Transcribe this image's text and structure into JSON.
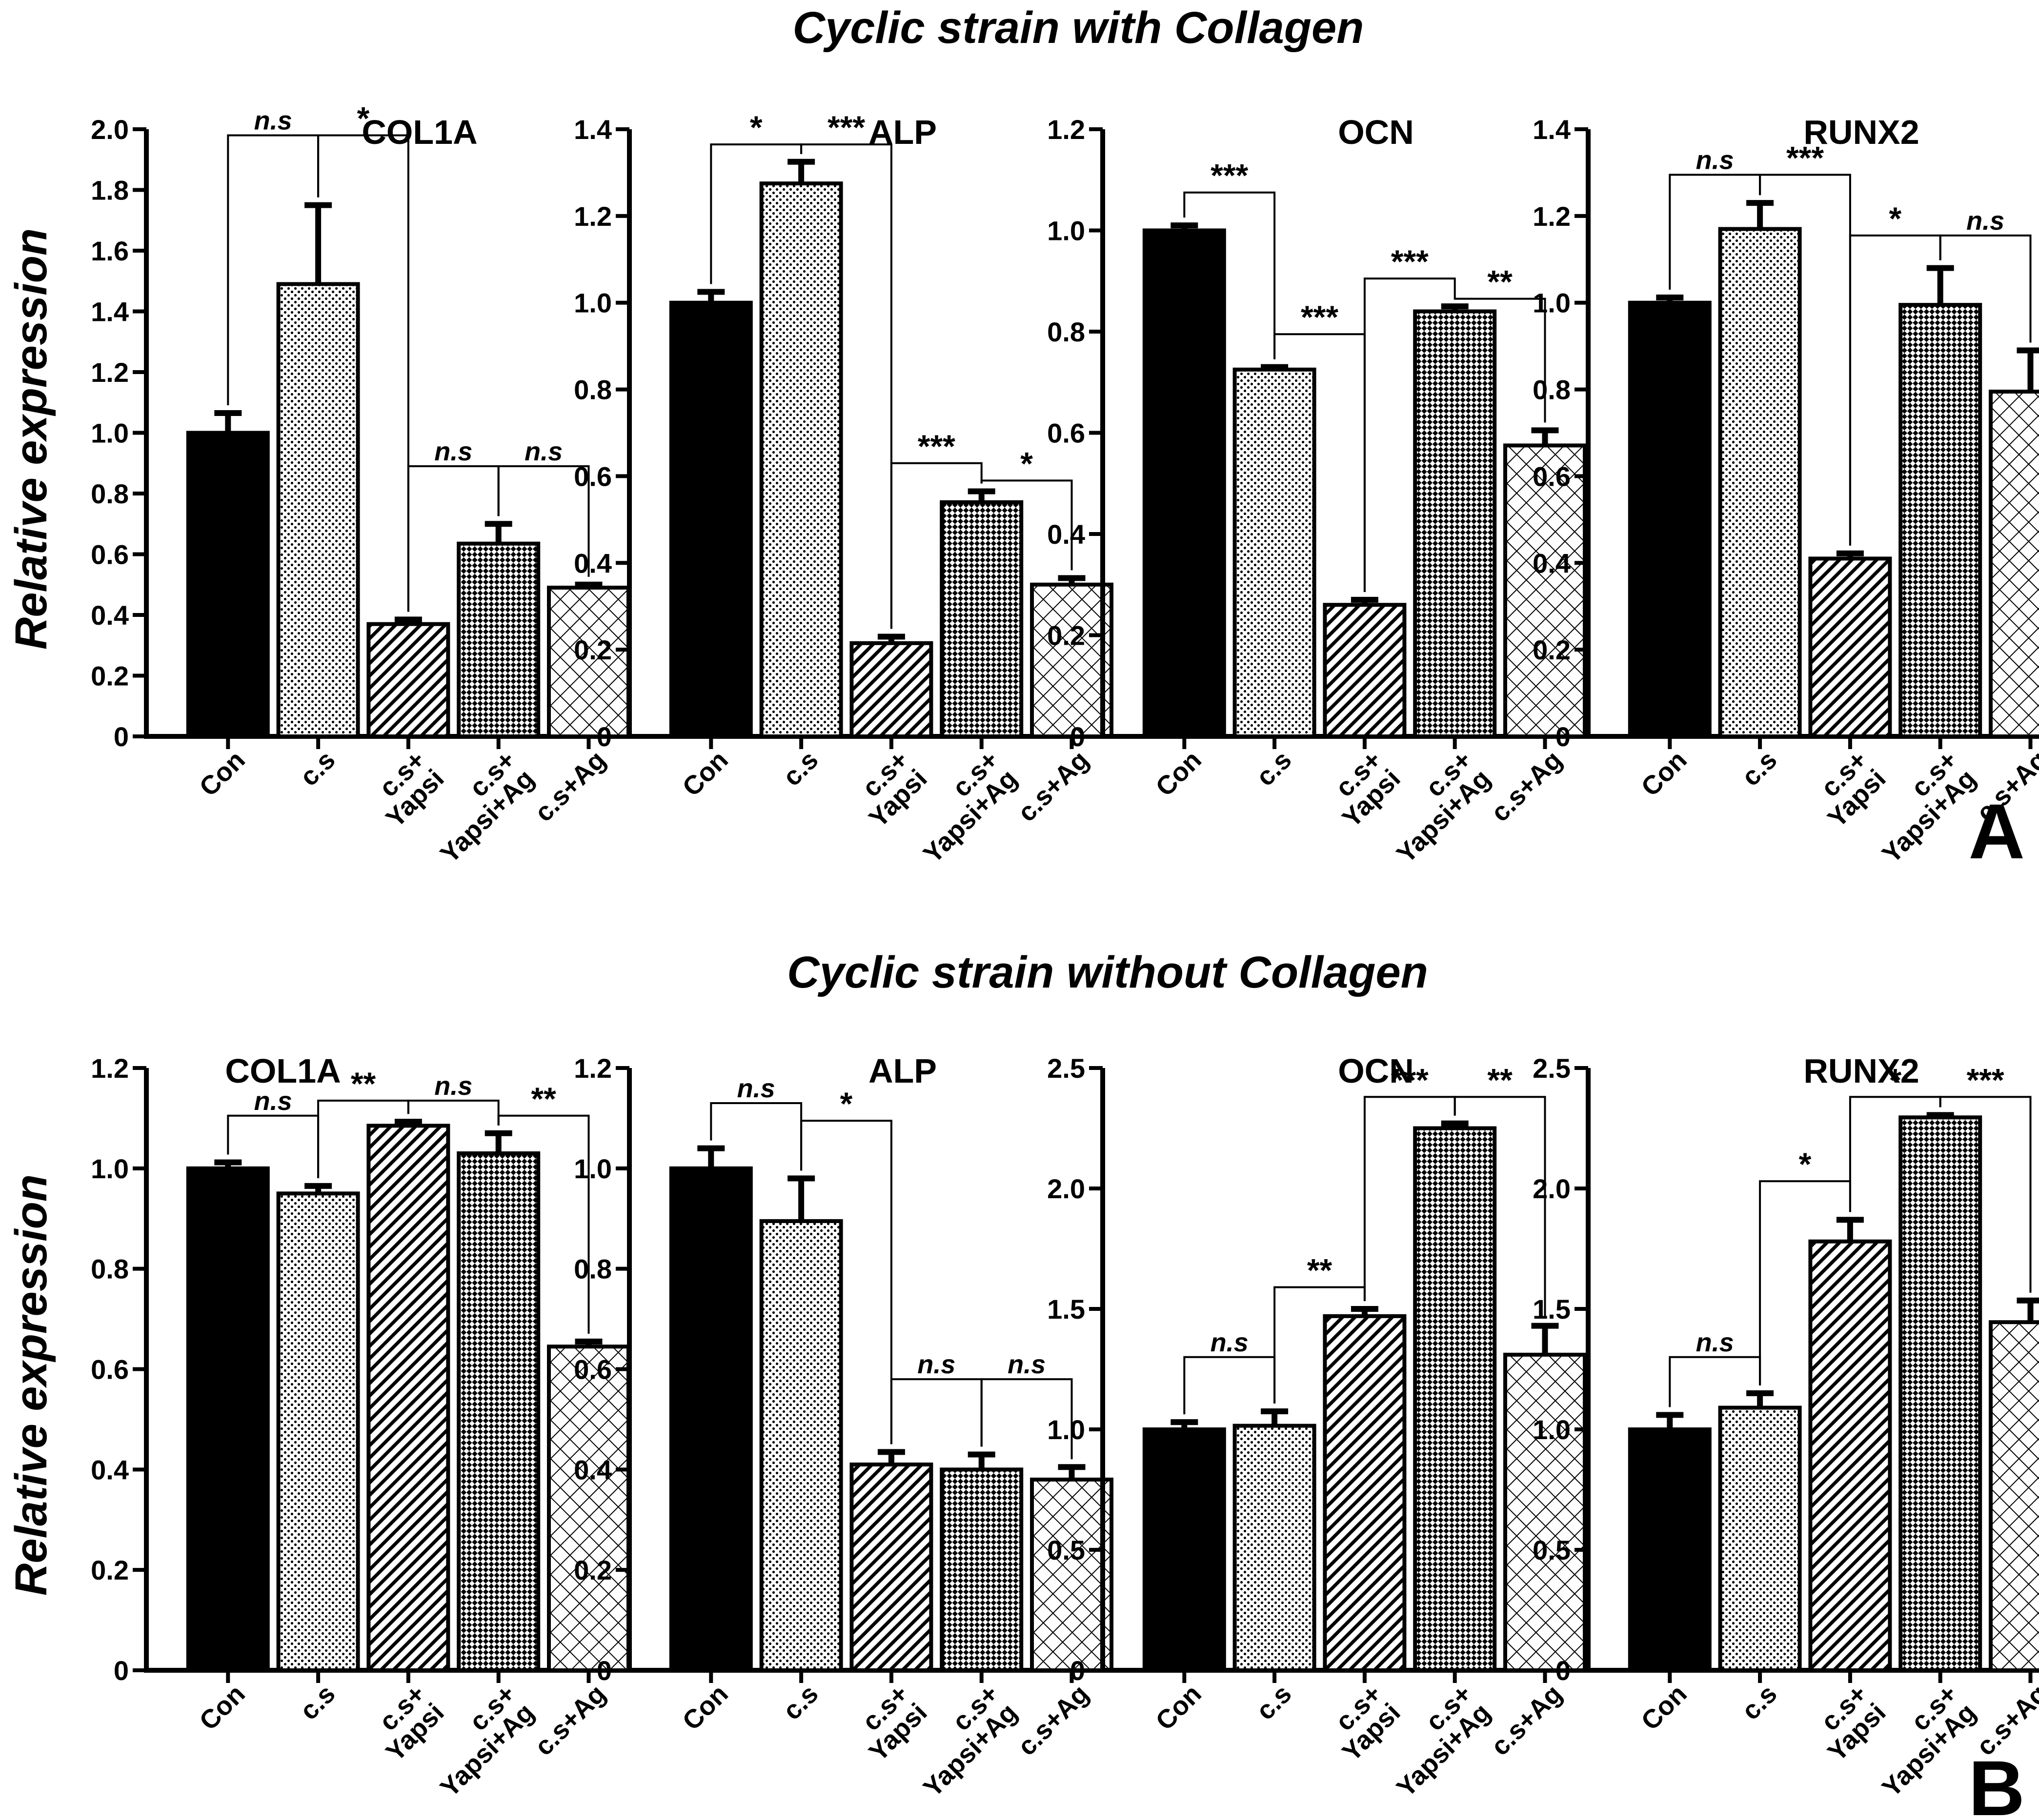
{
  "figure": {
    "panel_titles": [
      "Cyclic strain with Collagen",
      "Cyclic strain without Collagen"
    ],
    "panel_letters": [
      "A",
      "B"
    ],
    "ylabel": "Relative expression",
    "categories": [
      "Con",
      "c.s",
      "c.s+\nYapsi",
      "c.s+\nYapsi+Ag",
      "c.s+Ag"
    ]
  },
  "chart_data": [
    {
      "type": "bar",
      "panel": "A",
      "title": "COL1A",
      "ylabel": "Relative expression",
      "ylim": [
        0,
        2.0
      ],
      "yticks": [
        0,
        0.2,
        0.4,
        0.6,
        0.8,
        1.0,
        1.2,
        1.4,
        1.6,
        1.8,
        2.0
      ],
      "tick_labels": [
        "0",
        "0.2",
        "0.4",
        "0.6",
        "0.8",
        "1.0",
        "1.2",
        "1.4",
        "1.6",
        "1.8",
        "2.0"
      ],
      "values": [
        1.0,
        1.49,
        0.37,
        0.635,
        0.49
      ],
      "errors": [
        0.065,
        0.26,
        0.015,
        0.065,
        0.01
      ],
      "significance": [
        {
          "from": 0,
          "to": 1,
          "label": "n.s",
          "y": 1.98
        },
        {
          "from": 1,
          "to": 2,
          "label": "*",
          "y": 1.98
        },
        {
          "from": 2,
          "to": 3,
          "label": "n.s",
          "y": 0.89
        },
        {
          "from": 3,
          "to": 4,
          "label": "n.s",
          "y": 0.89
        }
      ]
    },
    {
      "type": "bar",
      "panel": "A",
      "title": "ALP",
      "ylabel": "",
      "ylim": [
        0,
        1.4
      ],
      "yticks": [
        0,
        0.2,
        0.4,
        0.6,
        0.8,
        1.0,
        1.2,
        1.4
      ],
      "tick_labels": [
        "0",
        "0.2",
        "0.4",
        "0.6",
        "0.8",
        "1.0",
        "1.2",
        "1.4"
      ],
      "values": [
        1.0,
        1.275,
        0.215,
        0.54,
        0.35
      ],
      "errors": [
        0.025,
        0.05,
        0.015,
        0.025,
        0.015
      ],
      "significance": [
        {
          "from": 0,
          "to": 1,
          "label": "*",
          "y": 1.365
        },
        {
          "from": 1,
          "to": 2,
          "label": "***",
          "y": 1.365
        },
        {
          "from": 2,
          "to": 3,
          "label": "***",
          "y": 0.63
        },
        {
          "from": 3,
          "to": 4,
          "label": "*",
          "y": 0.59
        }
      ]
    },
    {
      "type": "bar",
      "panel": "A",
      "title": "OCN",
      "ylabel": "",
      "ylim": [
        0,
        1.2
      ],
      "yticks": [
        0,
        0.2,
        0.4,
        0.6,
        0.8,
        1.0,
        1.2
      ],
      "tick_labels": [
        "0",
        "0.2",
        "0.4",
        "0.6",
        "0.8",
        "1.0",
        "1.2"
      ],
      "values": [
        1.0,
        0.725,
        0.26,
        0.84,
        0.575
      ],
      "errors": [
        0.01,
        0.005,
        0.01,
        0.01,
        0.03
      ],
      "significance": [
        {
          "from": 0,
          "to": 1,
          "label": "***",
          "y": 1.075
        },
        {
          "from": 1,
          "to": 2,
          "label": "***",
          "y": 0.795
        },
        {
          "from": 2,
          "to": 3,
          "label": "***",
          "y": 0.905
        },
        {
          "from": 3,
          "to": 4,
          "label": "**",
          "y": 0.865
        }
      ]
    },
    {
      "type": "bar",
      "panel": "A",
      "title": "RUNX2",
      "ylabel": "",
      "ylim": [
        0,
        1.4
      ],
      "yticks": [
        0,
        0.2,
        0.4,
        0.6,
        0.8,
        1.0,
        1.2,
        1.4
      ],
      "tick_labels": [
        "0",
        "0.2",
        "0.4",
        "0.6",
        "0.8",
        "1.0",
        "1.2",
        "1.4"
      ],
      "values": [
        1.0,
        1.17,
        0.41,
        0.995,
        0.795
      ],
      "errors": [
        0.012,
        0.06,
        0.012,
        0.085,
        0.095
      ],
      "significance": [
        {
          "from": 0,
          "to": 1,
          "label": "n.s",
          "y": 1.295
        },
        {
          "from": 1,
          "to": 2,
          "label": "***",
          "y": 1.295
        },
        {
          "from": 2,
          "to": 3,
          "label": "*",
          "y": 1.155
        },
        {
          "from": 3,
          "to": 4,
          "label": "n.s",
          "y": 1.155
        }
      ]
    },
    {
      "type": "bar",
      "panel": "B",
      "title": "COL1A",
      "ylabel": "Relative expression",
      "ylim": [
        0,
        1.2
      ],
      "yticks": [
        0,
        0.2,
        0.4,
        0.6,
        0.8,
        1.0,
        1.2
      ],
      "tick_labels": [
        "0",
        "0.2",
        "0.4",
        "0.6",
        "0.8",
        "1.0",
        "1.2"
      ],
      "values": [
        1.0,
        0.95,
        1.085,
        1.03,
        0.645
      ],
      "errors": [
        0.012,
        0.015,
        0.008,
        0.04,
        0.01
      ],
      "significance": [
        {
          "from": 0,
          "to": 1,
          "label": "n.s",
          "y": 1.105
        },
        {
          "from": 1,
          "to": 2,
          "label": "**",
          "y": 1.135
        },
        {
          "from": 2,
          "to": 3,
          "label": "n.s",
          "y": 1.135
        },
        {
          "from": 3,
          "to": 4,
          "label": "**",
          "y": 1.105
        }
      ]
    },
    {
      "type": "bar",
      "panel": "B",
      "title": "ALP",
      "ylabel": "",
      "ylim": [
        0,
        1.2
      ],
      "yticks": [
        0,
        0.2,
        0.4,
        0.6,
        0.8,
        1.0,
        1.2
      ],
      "tick_labels": [
        "0",
        "0.2",
        "0.4",
        "0.6",
        "0.8",
        "1.0",
        "1.2"
      ],
      "values": [
        1.0,
        0.895,
        0.41,
        0.4,
        0.38
      ],
      "errors": [
        0.04,
        0.085,
        0.025,
        0.03,
        0.025
      ],
      "significance": [
        {
          "from": 0,
          "to": 1,
          "label": "n.s",
          "y": 1.13
        },
        {
          "from": 1,
          "to": 2,
          "label": "*",
          "y": 1.095
        },
        {
          "from": 2,
          "to": 3,
          "label": "n.s",
          "y": 0.58
        },
        {
          "from": 3,
          "to": 4,
          "label": "n.s",
          "y": 0.58
        }
      ]
    },
    {
      "type": "bar",
      "panel": "B",
      "title": "OCN",
      "ylabel": "",
      "ylim": [
        0,
        2.5
      ],
      "yticks": [
        0,
        0.5,
        1.0,
        1.5,
        2.0,
        2.5
      ],
      "tick_labels": [
        "0",
        "0.5",
        "1.0",
        "1.5",
        "2.0",
        "2.5"
      ],
      "values": [
        1.0,
        1.015,
        1.47,
        2.25,
        1.31
      ],
      "errors": [
        0.03,
        0.06,
        0.03,
        0.02,
        0.12
      ],
      "significance": [
        {
          "from": 0,
          "to": 1,
          "label": "n.s",
          "y": 1.3
        },
        {
          "from": 1,
          "to": 2,
          "label": "**",
          "y": 1.59
        },
        {
          "from": 2,
          "to": 3,
          "label": "***",
          "y": 2.38
        },
        {
          "from": 3,
          "to": 4,
          "label": "**",
          "y": 2.38
        }
      ]
    },
    {
      "type": "bar",
      "panel": "B",
      "title": "RUNX2",
      "ylabel": "",
      "ylim": [
        0,
        2.5
      ],
      "yticks": [
        0,
        0.5,
        1.0,
        1.5,
        2.0,
        2.5
      ],
      "tick_labels": [
        "0",
        "0.5",
        "1.0",
        "1.5",
        "2.0",
        "2.5"
      ],
      "values": [
        1.0,
        1.09,
        1.78,
        2.295,
        1.445
      ],
      "errors": [
        0.06,
        0.06,
        0.09,
        0.01,
        0.09
      ],
      "significance": [
        {
          "from": 0,
          "to": 1,
          "label": "n.s",
          "y": 1.3
        },
        {
          "from": 1,
          "to": 2,
          "label": "*",
          "y": 2.03
        },
        {
          "from": 2,
          "to": 3,
          "label": "*",
          "y": 2.38
        },
        {
          "from": 3,
          "to": 4,
          "label": "***",
          "y": 2.38
        }
      ]
    }
  ]
}
